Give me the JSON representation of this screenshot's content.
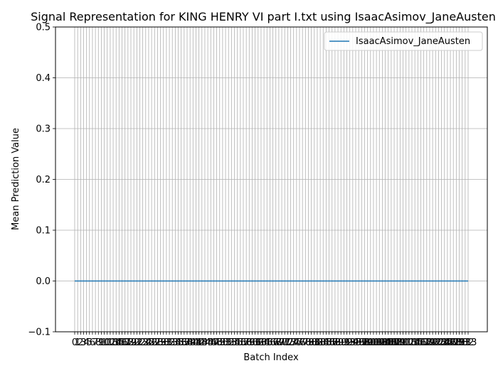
{
  "chart_data": {
    "type": "line",
    "title": "Signal Representation for KING HENRY VI part I.txt using IsaacAsimov_JaneAusten",
    "xlabel": "Batch Index",
    "ylabel": "Mean Prediction Value",
    "xlim": [
      0,
      133
    ],
    "ylim": [
      -0.1,
      0.5
    ],
    "y_ticks": [
      -0.1,
      0.0,
      0.1,
      0.2,
      0.3,
      0.4,
      0.5
    ],
    "y_tick_labels": [
      "−0.1",
      "0.0",
      "0.1",
      "0.2",
      "0.3",
      "0.4",
      "0.5"
    ],
    "x_tick_step": 1,
    "grid": true,
    "legend_position": "top-right",
    "series": [
      {
        "name": "IsaacAsimov_JaneAusten",
        "color": "#1f77b4",
        "x_start": 0,
        "x_end": 133,
        "constant_value": 0.0
      }
    ]
  }
}
